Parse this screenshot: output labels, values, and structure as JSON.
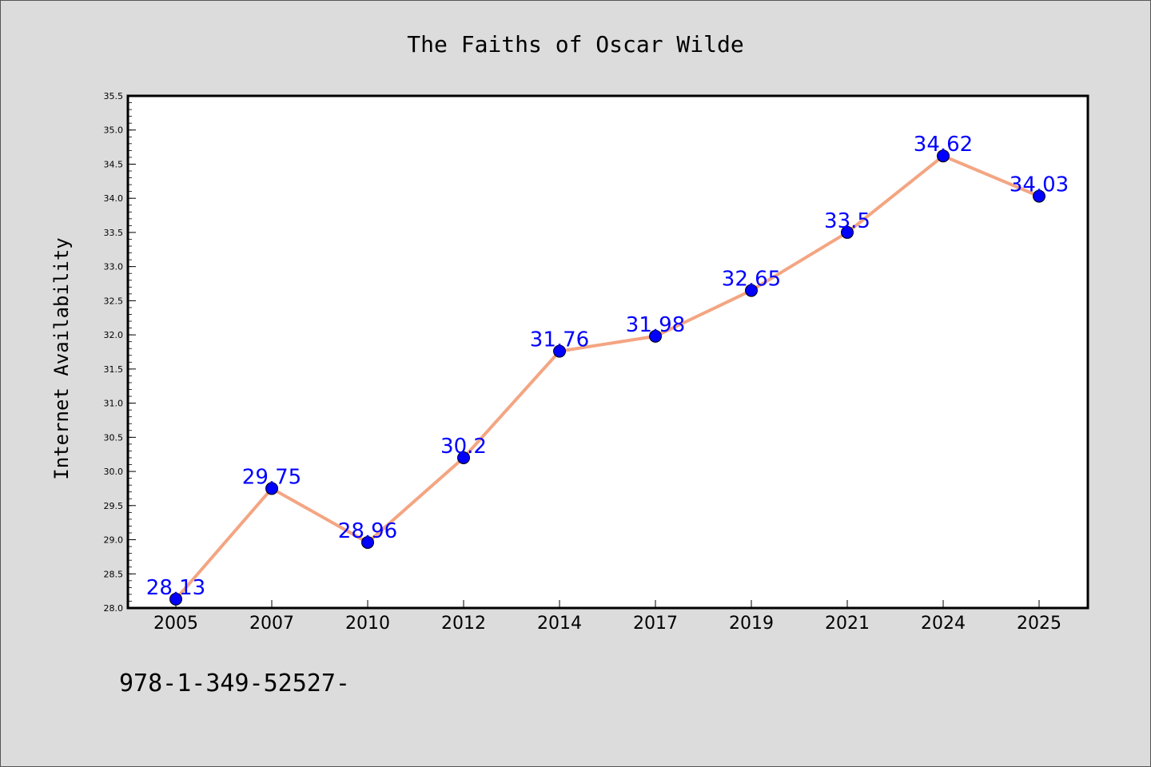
{
  "chart_data": {
    "type": "line",
    "title": "The Faiths of Oscar Wilde",
    "ylabel": "Internet Availability",
    "xlabel": "",
    "categories": [
      "2005",
      "2007",
      "2010",
      "2012",
      "2014",
      "2017",
      "2019",
      "2021",
      "2024",
      "2025"
    ],
    "values": [
      28.13,
      29.75,
      28.96,
      30.2,
      31.76,
      31.98,
      32.65,
      33.5,
      34.62,
      34.03
    ],
    "data_labels": [
      "28.13",
      "29.75",
      "28.96",
      "30.2",
      "31.76",
      "31.98",
      "32.65",
      "33.5",
      "34.62",
      "34.03"
    ],
    "ylim": [
      28.0,
      35.5
    ],
    "yticks": [
      "28.0",
      "28.5",
      "29.0",
      "29.5",
      "30.0",
      "30.5",
      "31.0",
      "31.5",
      "32.0",
      "32.5",
      "33.0",
      "33.5",
      "34.0",
      "34.5",
      "35.0",
      "35.5"
    ],
    "grid": false,
    "legend": "none",
    "line_color": "#f4a582",
    "marker_color": "#0000ff",
    "label_color": "#0000ff"
  },
  "footer_text": "978-1-349-52527-"
}
